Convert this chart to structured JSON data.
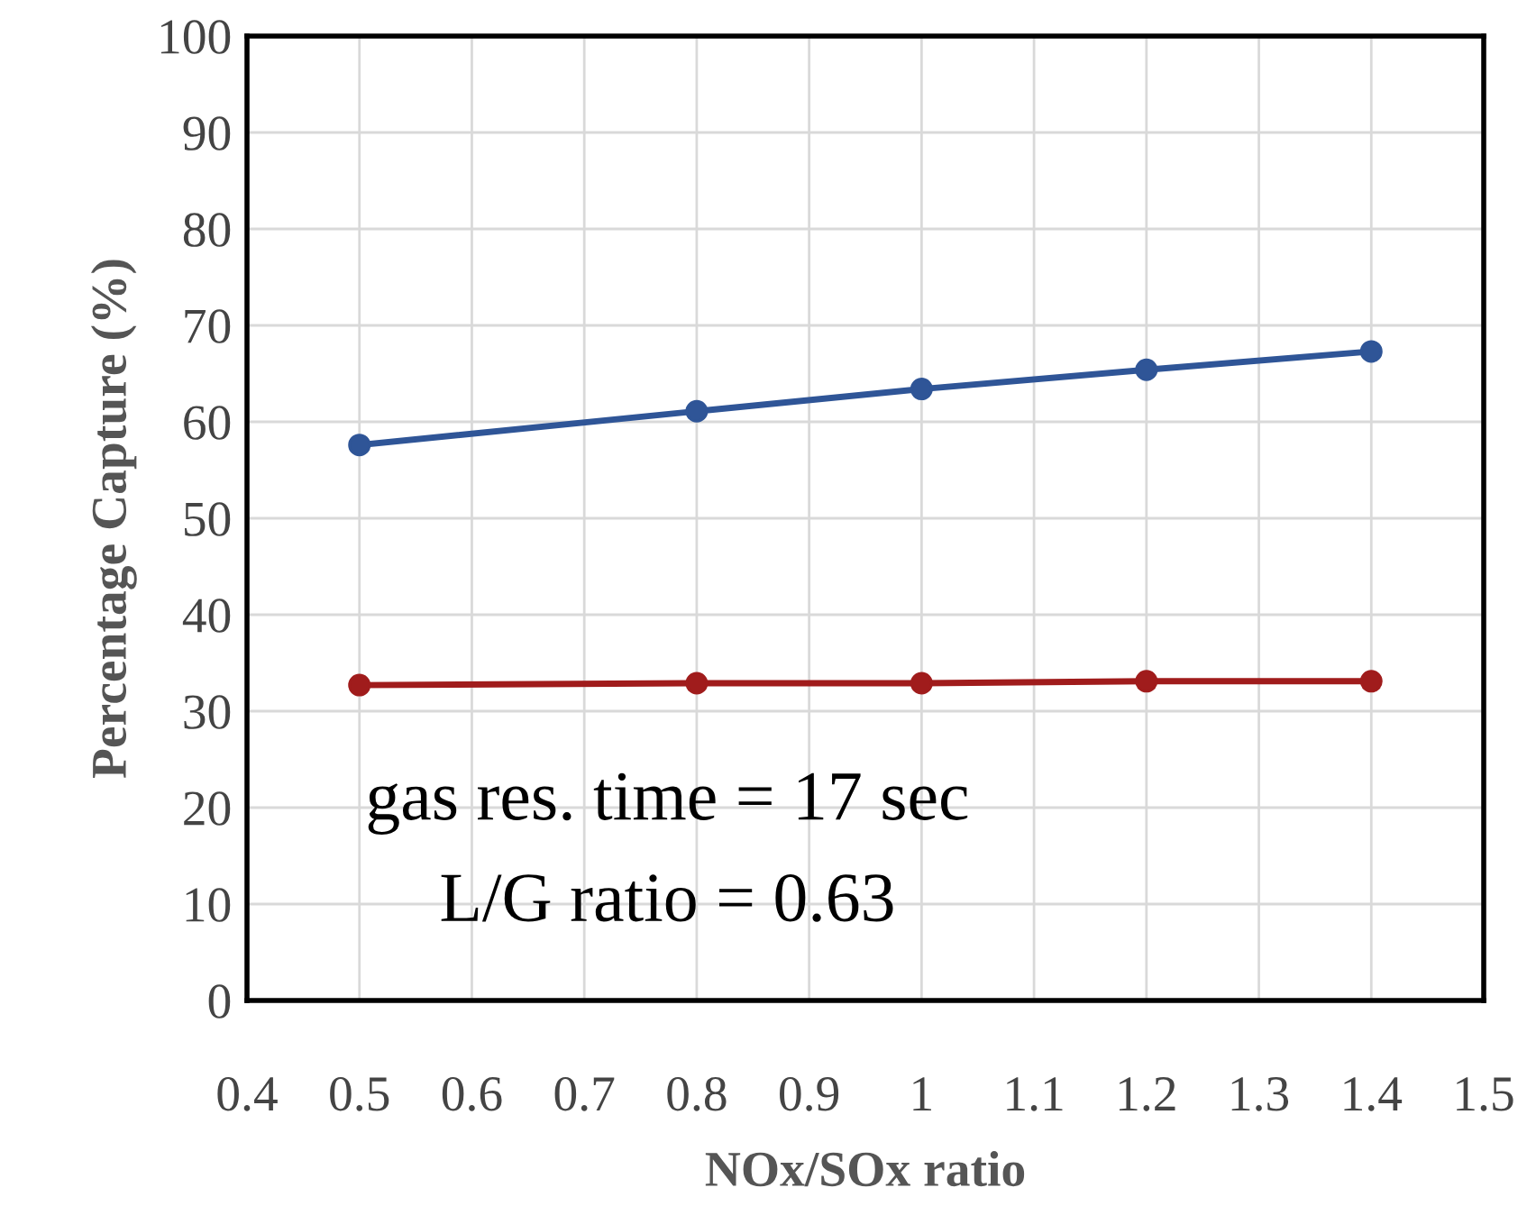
{
  "chart_data": {
    "type": "line",
    "xlabel": "NOx/SOx ratio",
    "ylabel": "Percentage Capture (%)",
    "x": [
      0.5,
      0.8,
      1,
      1.2,
      1.4
    ],
    "series": [
      {
        "color": "#2f5597",
        "values": [
          57.6,
          61.1,
          63.4,
          65.4,
          67.3
        ]
      },
      {
        "color": "#a01c1c",
        "values": [
          32.7,
          32.9,
          32.9,
          33.1,
          33.1
        ]
      }
    ],
    "xlim": [
      0.4,
      1.5
    ],
    "xticks": [
      0.4,
      0.5,
      0.6,
      0.7,
      0.8,
      0.9,
      1,
      1.1,
      1.2,
      1.3,
      1.4,
      1.5
    ],
    "ylim": [
      0,
      100
    ],
    "yticks": [
      0,
      10,
      20,
      30,
      40,
      50,
      60,
      70,
      80,
      90,
      100
    ],
    "grid": true,
    "marker": "circle",
    "line_style": "solid",
    "annotations": [
      "gas res. time = 17 sec",
      "L/G ratio = 0.63"
    ]
  }
}
